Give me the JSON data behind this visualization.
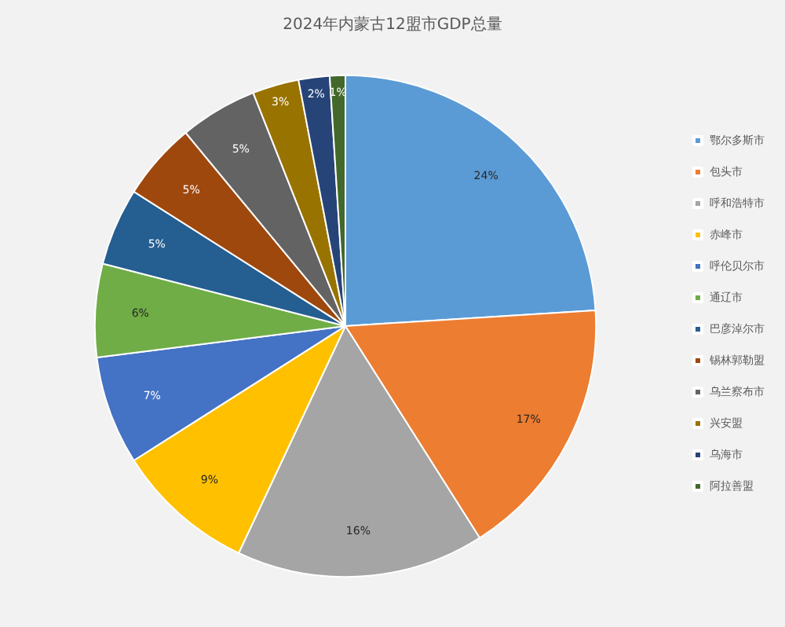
{
  "chart_data": {
    "type": "pie",
    "title": "2024年内蒙古12盟市GDP总量",
    "categories": [
      "鄂尔多斯市",
      "包头市",
      "呼和浩特市",
      "赤峰市",
      "呼伦贝尔市",
      "通辽市",
      "巴彦淖尔市",
      "锡林郭勒盟",
      "乌兰察布市",
      "兴安盟",
      "乌海市",
      "阿拉善盟"
    ],
    "values": [
      24,
      17,
      16,
      9,
      7,
      6,
      5,
      5,
      5,
      3,
      2,
      1
    ],
    "value_labels": [
      "24%",
      "17%",
      "16%",
      "9%",
      "7%",
      "6%",
      "5%",
      "5%",
      "5%",
      "3%",
      "2%",
      "1%"
    ],
    "colors": [
      "#5b9bd5",
      "#ed7d31",
      "#a5a5a5",
      "#ffc000",
      "#4472c4",
      "#70ad47",
      "#255e91",
      "#9e480e",
      "#636363",
      "#997300",
      "#264478",
      "#43682b"
    ],
    "legend": "right"
  }
}
